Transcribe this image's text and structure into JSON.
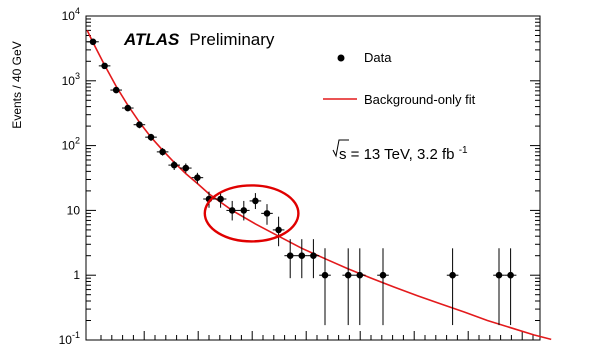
{
  "chart_data": {
    "type": "scatter",
    "ylabel": "Events / 40 GeV",
    "xlabel": "",
    "yscale": "log",
    "ylim": [
      0.1,
      10000
    ],
    "y_tick_labels": [
      {
        "value": 10000,
        "base": "10",
        "exp": "4"
      },
      {
        "value": 1000,
        "base": "10",
        "exp": "3"
      },
      {
        "value": 100,
        "base": "10",
        "exp": "2"
      },
      {
        "value": 10,
        "base": "10",
        "exp": ""
      },
      {
        "value": 1,
        "base": "1",
        "exp": ""
      },
      {
        "value": 0.1,
        "base": "10",
        "exp": "-1"
      }
    ],
    "annotations": {
      "experiment": "ATLAS",
      "status": "Preliminary",
      "energy_label": "s = 13 TeV, 3.2 fb",
      "energy_sup": "-1"
    },
    "legend": {
      "placement": "top-right",
      "entries": [
        {
          "label": "Data",
          "marker": "point",
          "color": "#000000"
        },
        {
          "label": "Background-only fit",
          "marker": "line",
          "color": "#e31a1c"
        }
      ]
    },
    "fit_color": "#e31a1c",
    "highlight_color": "#e00000",
    "series": [
      {
        "name": "Data",
        "points": [
          {
            "bin": 0,
            "y": 4000,
            "lo": 3750,
            "hi": 4250
          },
          {
            "bin": 1,
            "y": 1700,
            "lo": 1590,
            "hi": 1810
          },
          {
            "bin": 2,
            "y": 720,
            "lo": 650,
            "hi": 790
          },
          {
            "bin": 3,
            "y": 380,
            "lo": 340,
            "hi": 420
          },
          {
            "bin": 4,
            "y": 210,
            "lo": 185,
            "hi": 235
          },
          {
            "bin": 5,
            "y": 135,
            "lo": 118,
            "hi": 152
          },
          {
            "bin": 6,
            "y": 80,
            "lo": 70,
            "hi": 92
          },
          {
            "bin": 7,
            "y": 50,
            "lo": 42,
            "hi": 58
          },
          {
            "bin": 8,
            "y": 45,
            "lo": 38,
            "hi": 53
          },
          {
            "bin": 9,
            "y": 32,
            "lo": 26,
            "hi": 38
          },
          {
            "bin": 10,
            "y": 15,
            "lo": 11,
            "hi": 19.5
          },
          {
            "bin": 11,
            "y": 15,
            "lo": 11,
            "hi": 19.5
          },
          {
            "bin": 12,
            "y": 10,
            "lo": 7,
            "hi": 14
          },
          {
            "bin": 13,
            "y": 10,
            "lo": 7,
            "hi": 14
          },
          {
            "bin": 14,
            "y": 14,
            "lo": 10.5,
            "hi": 18.5
          },
          {
            "bin": 15,
            "y": 9,
            "lo": 6,
            "hi": 12.5
          },
          {
            "bin": 16,
            "y": 5,
            "lo": 2.8,
            "hi": 8
          },
          {
            "bin": 17,
            "y": 2,
            "lo": 0.9,
            "hi": 3.6
          },
          {
            "bin": 18,
            "y": 2,
            "lo": 0.9,
            "hi": 3.6
          },
          {
            "bin": 19,
            "y": 2,
            "lo": 0.9,
            "hi": 3.6
          },
          {
            "bin": 20,
            "y": 1,
            "lo": 0.17,
            "hi": 2.6
          },
          {
            "bin": 22,
            "y": 1,
            "lo": 0.17,
            "hi": 2.6
          },
          {
            "bin": 23,
            "y": 1,
            "lo": 0.17,
            "hi": 2.6
          },
          {
            "bin": 25,
            "y": 1,
            "lo": 0.17,
            "hi": 2.6
          },
          {
            "bin": 31,
            "y": 1,
            "lo": 0.17,
            "hi": 2.6
          },
          {
            "bin": 35,
            "y": 1,
            "lo": 0.17,
            "hi": 2.6
          },
          {
            "bin": 36,
            "y": 1,
            "lo": 0.17,
            "hi": 2.6
          }
        ]
      },
      {
        "name": "Background-only fit",
        "points": [
          {
            "bin": -0.5,
            "y": 6000
          },
          {
            "bin": 0,
            "y": 3900
          },
          {
            "bin": 1,
            "y": 1750
          },
          {
            "bin": 2,
            "y": 820
          },
          {
            "bin": 3,
            "y": 420
          },
          {
            "bin": 4,
            "y": 230
          },
          {
            "bin": 5,
            "y": 135
          },
          {
            "bin": 6,
            "y": 85
          },
          {
            "bin": 7,
            "y": 55
          },
          {
            "bin": 8,
            "y": 37
          },
          {
            "bin": 9,
            "y": 26
          },
          {
            "bin": 10,
            "y": 18
          },
          {
            "bin": 12,
            "y": 10
          },
          {
            "bin": 14,
            "y": 6.2
          },
          {
            "bin": 16,
            "y": 4
          },
          {
            "bin": 18,
            "y": 2.6
          },
          {
            "bin": 20,
            "y": 1.8
          },
          {
            "bin": 22,
            "y": 1.25
          },
          {
            "bin": 24,
            "y": 0.9
          },
          {
            "bin": 26,
            "y": 0.65
          },
          {
            "bin": 28,
            "y": 0.48
          },
          {
            "bin": 30,
            "y": 0.36
          },
          {
            "bin": 32,
            "y": 0.27
          },
          {
            "bin": 34,
            "y": 0.2
          },
          {
            "bin": 36,
            "y": 0.155
          },
          {
            "bin": 38,
            "y": 0.12
          },
          {
            "bin": 39.5,
            "y": 0.102
          }
        ]
      }
    ],
    "highlight_bins": [
      10.5,
      16.5
    ]
  }
}
